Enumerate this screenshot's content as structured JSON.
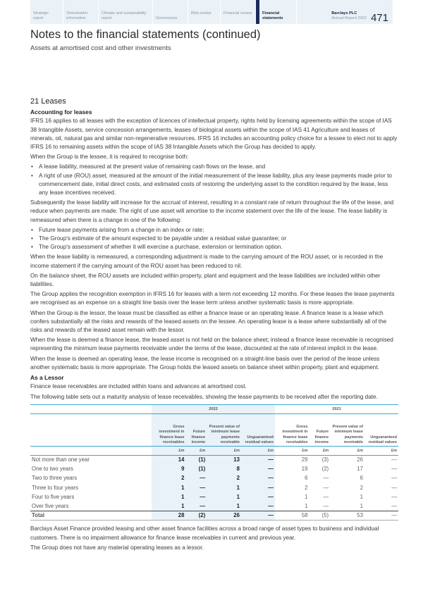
{
  "nav": {
    "items": [
      "Strategic report",
      "Shareholder information",
      "Climate and sustainability report",
      "Governance",
      "Risk review",
      "Financial review",
      "Financial statements"
    ],
    "active": "Financial statements",
    "brand": "Barclays PLC",
    "report": "Annual Report 2022",
    "page": "471"
  },
  "title": "Notes to the financial statements (continued)",
  "subtitle": "Assets at amortised cost and other investments",
  "section": "21 Leases",
  "accounting_heading": "Accounting for leases",
  "p1": "IFRS 16 applies to all leases with the exception of licences of intellectual property, rights held by licensing agreements within the scope of IAS 38 Intangible Assets, service concession arrangements, leases of biological assets within the scope of IAS 41 Agriculture and leases of minerals, oil, natural gas and similar non-regenerative resources. IFRS 16 includes an accounting policy choice for a lessee to elect not to apply IFRS 16 to remaining assets within the scope of IAS 38 Intangible Assets which the Group has decided to apply.",
  "p2": "When the Group is the lessee, it is required to recognise both:",
  "b1": [
    "A lease liability, measured at the present value of remaining cash flows on the lease, and",
    "A right of use (ROU) asset, measured at the amount of the initial measurement of the lease liability, plus any lease payments made prior to commencement date, initial direct costs, and estimated costs of restoring the underlying asset to the condition required by the lease, less any lease incentives received."
  ],
  "p3": "Subsequently the lease liability will increase for the accrual of interest, resulting in a constant rate of return throughout the life of the lease, and reduce when payments are made. The right of use asset will amortise to the income statement over the life of the lease. The lease liability is remeasured when there is a change in one of the following:",
  "b2": [
    "Future lease payments arising from a change in an index or rate;",
    "The Group's estimate of the amount expected to be payable under a residual value guarantee; or",
    "The Group's assessment of whether it will exercise a purchase, extension or termination option."
  ],
  "p4": "When the lease liability is remeasured, a corresponding adjustment is made to the carrying amount of the ROU asset, or is recorded in the income statement if the carrying amount of the ROU asset has been reduced to nil.",
  "p5": "On the balance sheet, the ROU assets are included within property, plant and equipment and the lease liabilities are included within other liabilities.",
  "p6": "The Group applies the recognition exemption in IFRS 16 for leases with a term not exceeding 12 months. For these leases the lease payments are recognised as an expense on a straight line basis over the lease term unless another systematic basis is more appropriate.",
  "p7": "When the Group is the lessor, the lease must be classified as either a finance lease or an operating lease. A finance lease is a lease which confers substantially all the risks and rewards of the leased assets on the lessee. An operating lease is a lease where substantially all of the risks and rewards of the leased asset remain with the lessor.",
  "p8": "When the lease is deemed a finance lease, the leased asset is not held on the balance sheet; instead a finance lease receivable is recognised representing the minimum lease payments receivable under the terms of the lease, discounted at the rate of interest implicit in the lease.",
  "p9": "When the lease is deemed an operating lease, the lease income is recognised on a straight-line basis over the period of the lease unless another systematic basis is more appropriate. The Group holds the leased assets on balance sheet within property, plant and equipment.",
  "lessor_heading": "As a Lessor",
  "p10": "Finance lease receivables are included within loans and advances at amortised cost.",
  "p11": "The following table sets out a maturity analysis of lease receivables, showing the lease payments to be received after the reporting date.",
  "table": {
    "years": [
      "2022",
      "2021"
    ],
    "headers": [
      "Gross investment in finance lease receivables",
      "Future finance income",
      "Present value of minimum lease payments receivable",
      "Unguaranteed residual values",
      "Gross investment in finance lease receivables",
      "Future finance income",
      "Present value of minimum lease payments receivable",
      "Unguaranteed residual values"
    ],
    "unit": "£m",
    "rows": [
      {
        "label": "Not more than one year",
        "values": [
          "14",
          "(1)",
          "13",
          "—",
          "29",
          "(3)",
          "26",
          "—"
        ]
      },
      {
        "label": "One to two years",
        "values": [
          "9",
          "(1)",
          "8",
          "—",
          "19",
          "(2)",
          "17",
          "—"
        ]
      },
      {
        "label": "Two to three years",
        "values": [
          "2",
          "—",
          "2",
          "—",
          "6",
          "—",
          "6",
          "—"
        ]
      },
      {
        "label": "Three to four years",
        "values": [
          "1",
          "—",
          "1",
          "—",
          "2",
          "—",
          "2",
          "—"
        ]
      },
      {
        "label": "Four to five years",
        "values": [
          "1",
          "—",
          "1",
          "—",
          "1",
          "—",
          "1",
          "—"
        ]
      },
      {
        "label": "Over five years",
        "values": [
          "1",
          "—",
          "1",
          "—",
          "1",
          "—",
          "1",
          "—"
        ]
      }
    ],
    "total": {
      "label": "Total",
      "values": [
        "28",
        "(2)",
        "26",
        "—",
        "58",
        "(5)",
        "53",
        "—"
      ]
    }
  },
  "p12": "Barclays Asset Finance provided leasing and other asset finance facilities across a broad range of asset types to business and individual customers. There is no impairment allowance for finance lease receivables in current and previous year.",
  "p13": "The Group does not have any material operating leases as a lessor.",
  "colors": {
    "accent": "#3aa7cf",
    "nav_bg": "#eaf2f7",
    "navy": "#1a2b5c",
    "shade": "#e8f2f8"
  }
}
